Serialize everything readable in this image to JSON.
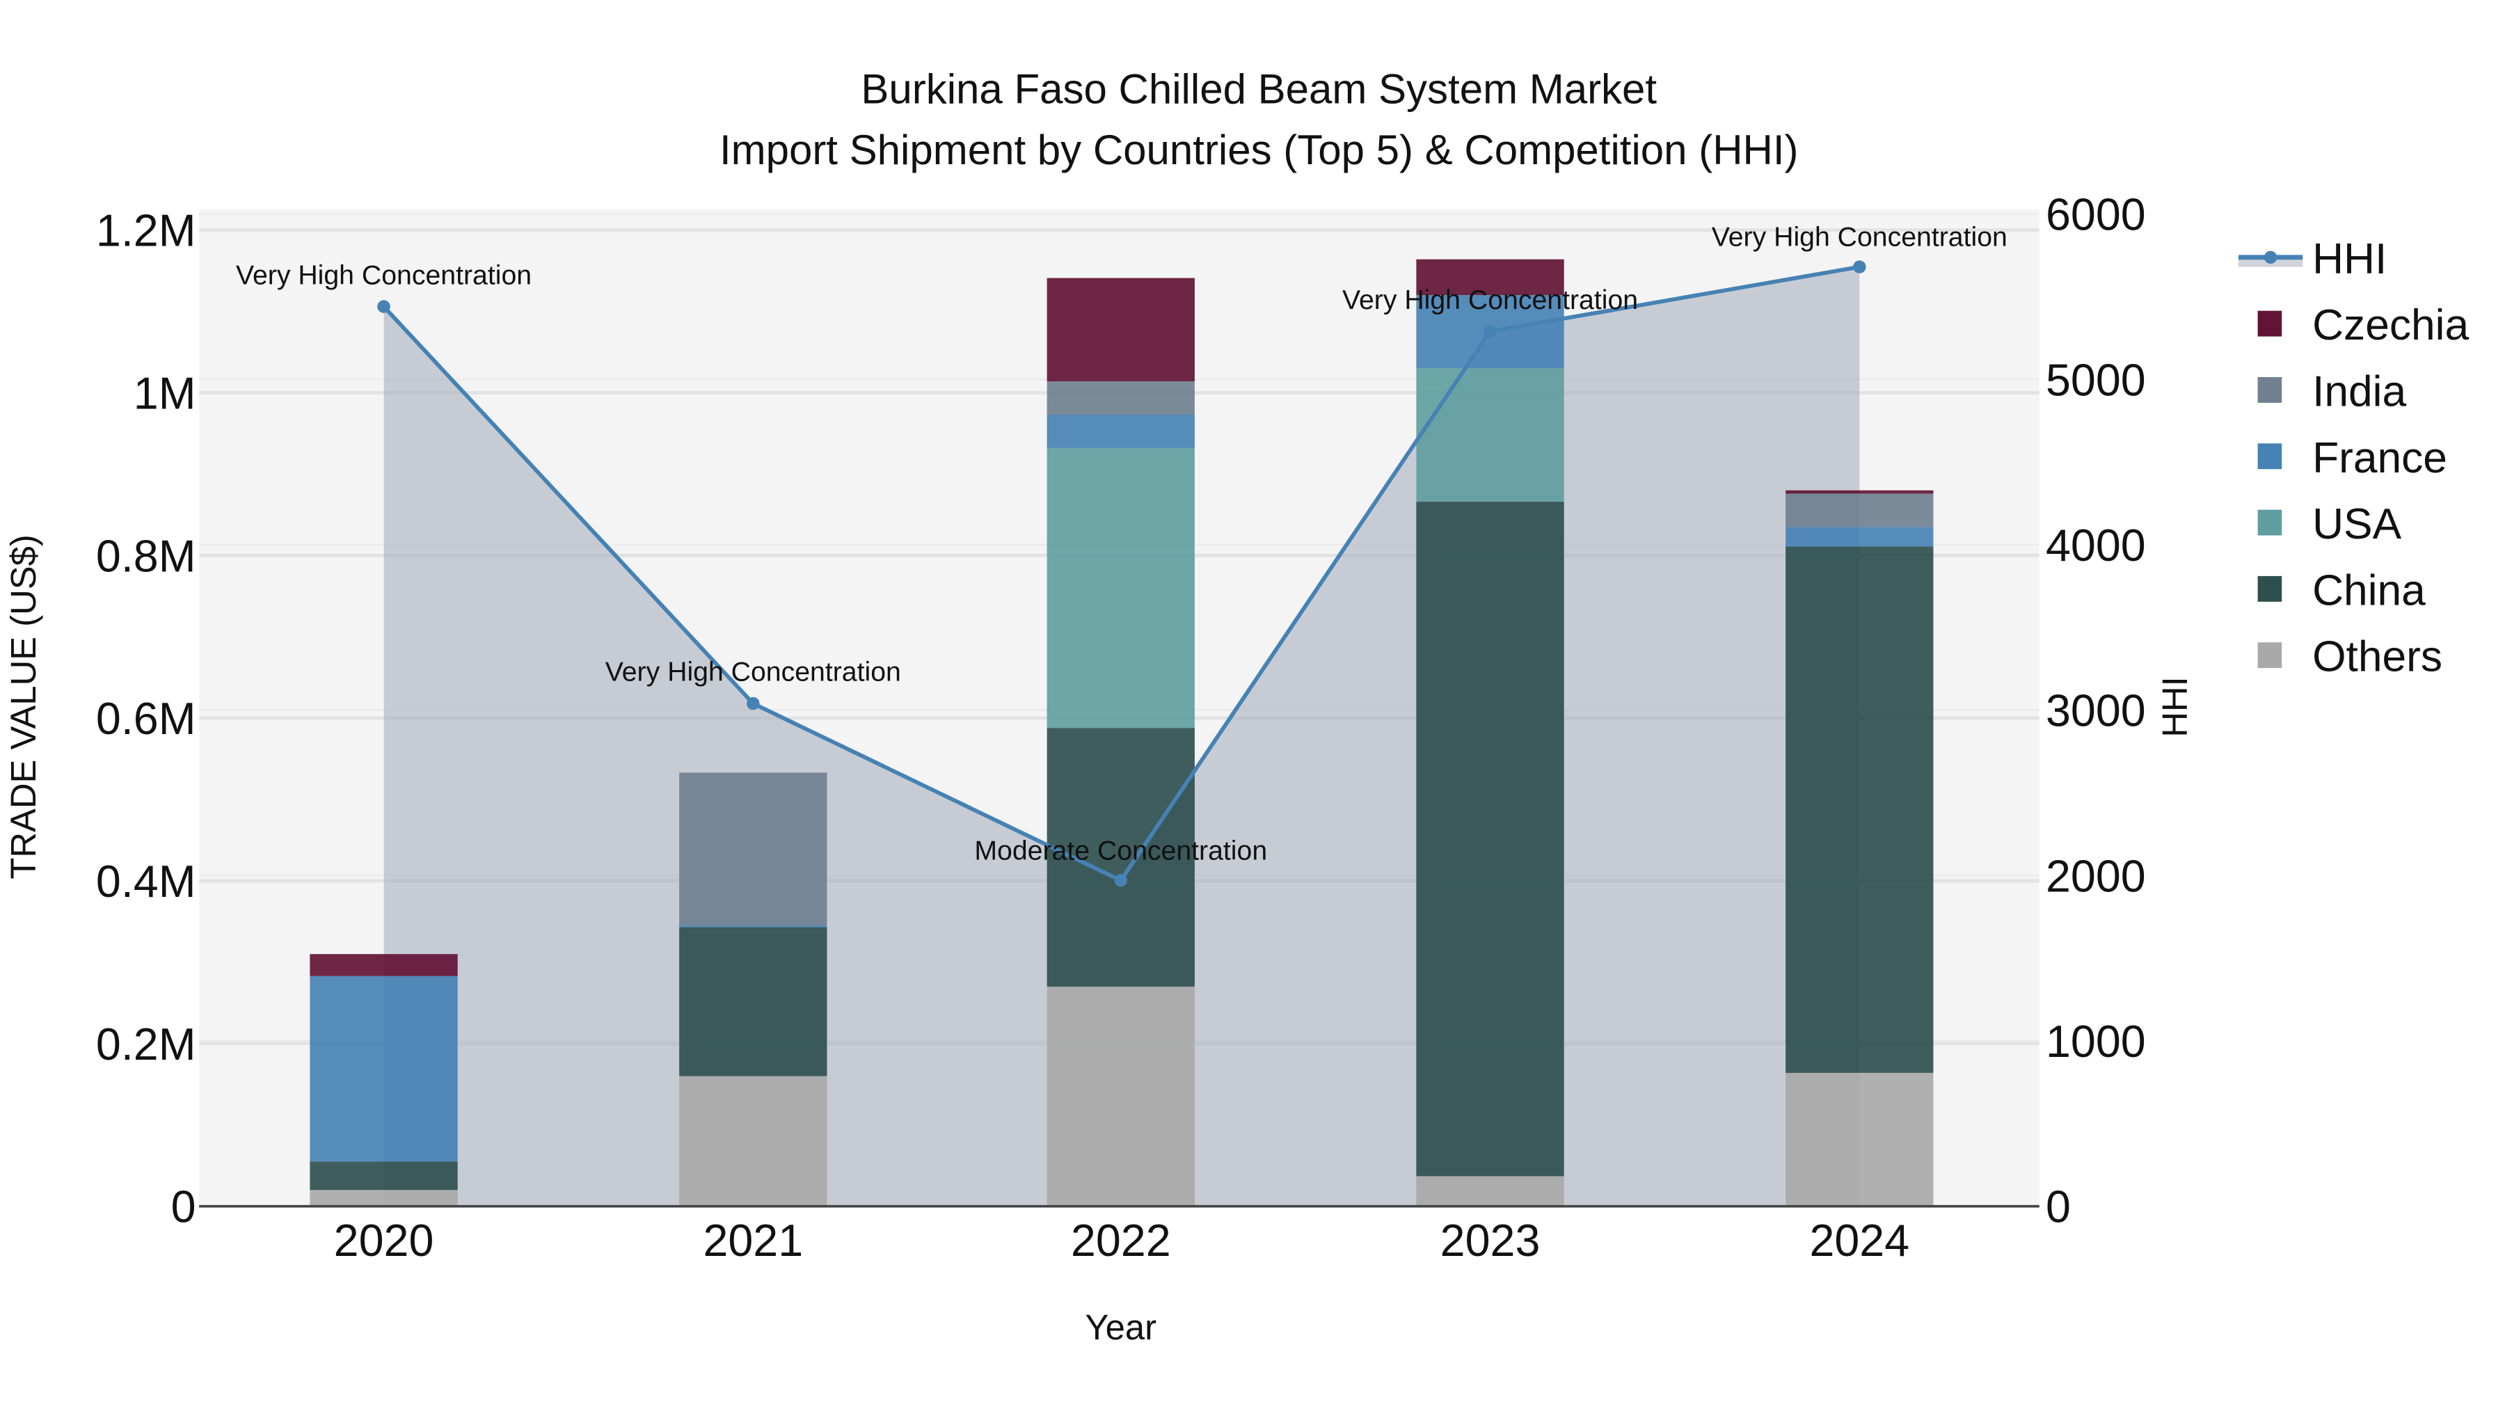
{
  "title_line1": "Burkina Faso Chilled Beam System Market",
  "title_line2": "Import Shipment by Countries (Top 5) & Competition (HHI)",
  "xlabel": "Year",
  "ylabel": "TRADE VALUE (US$)",
  "y2label": "HHI",
  "y_ticks": [
    "0",
    "0.2M",
    "0.4M",
    "0.6M",
    "0.8M",
    "1M",
    "1.2M"
  ],
  "y2_ticks": [
    "0",
    "1000",
    "2000",
    "3000",
    "4000",
    "5000",
    "6000"
  ],
  "legend": [
    {
      "name": "HHI",
      "color": "#4682B4"
    },
    {
      "name": "Czechia",
      "color": "#611434"
    },
    {
      "name": "India",
      "color": "#708090"
    },
    {
      "name": "France",
      "color": "#4682B4"
    },
    {
      "name": "USA",
      "color": "#5F9EA0"
    },
    {
      "name": "China",
      "color": "#2F4F4F"
    },
    {
      "name": "Others",
      "color": "#A9A9A9"
    }
  ],
  "chart_data": {
    "type": "bar",
    "stacked": true,
    "title": "Burkina Faso Chilled Beam System Market — Import Shipment by Countries (Top 5) & Competition (HHI)",
    "xlabel": "Year",
    "ylabel": "TRADE VALUE (US$)",
    "y2label": "HHI",
    "ylim": [
      0,
      1200000
    ],
    "y2lim": [
      0,
      6000
    ],
    "categories": [
      "2020",
      "2021",
      "2022",
      "2023",
      "2024"
    ],
    "series": [
      {
        "name": "Others",
        "color": "#A9A9A9",
        "values": [
          20000,
          160000,
          270000,
          37000,
          164000
        ]
      },
      {
        "name": "China",
        "color": "#2F4F4F",
        "values": [
          35000,
          183000,
          318000,
          829000,
          647000
        ]
      },
      {
        "name": "USA",
        "color": "#5F9EA0",
        "values": [
          0,
          0,
          344000,
          164000,
          0
        ]
      },
      {
        "name": "France",
        "color": "#4682B4",
        "values": [
          228000,
          2000,
          41000,
          90000,
          24000
        ]
      },
      {
        "name": "India",
        "color": "#708090",
        "values": [
          0,
          188000,
          41000,
          0,
          41000
        ]
      },
      {
        "name": "Czechia",
        "color": "#611434",
        "values": [
          27000,
          0,
          127000,
          44000,
          4000
        ]
      }
    ],
    "line_series": {
      "name": "HHI",
      "axis": "y2",
      "color": "#4682B4",
      "values": [
        5440,
        3040,
        1970,
        5290,
        5680
      ],
      "annotations": [
        "Very High Concentration",
        "Very High Concentration",
        "Moderate Concentration",
        "Very High Concentration",
        "Very High Concentration"
      ]
    },
    "grid": true,
    "legend_position": "right"
  }
}
